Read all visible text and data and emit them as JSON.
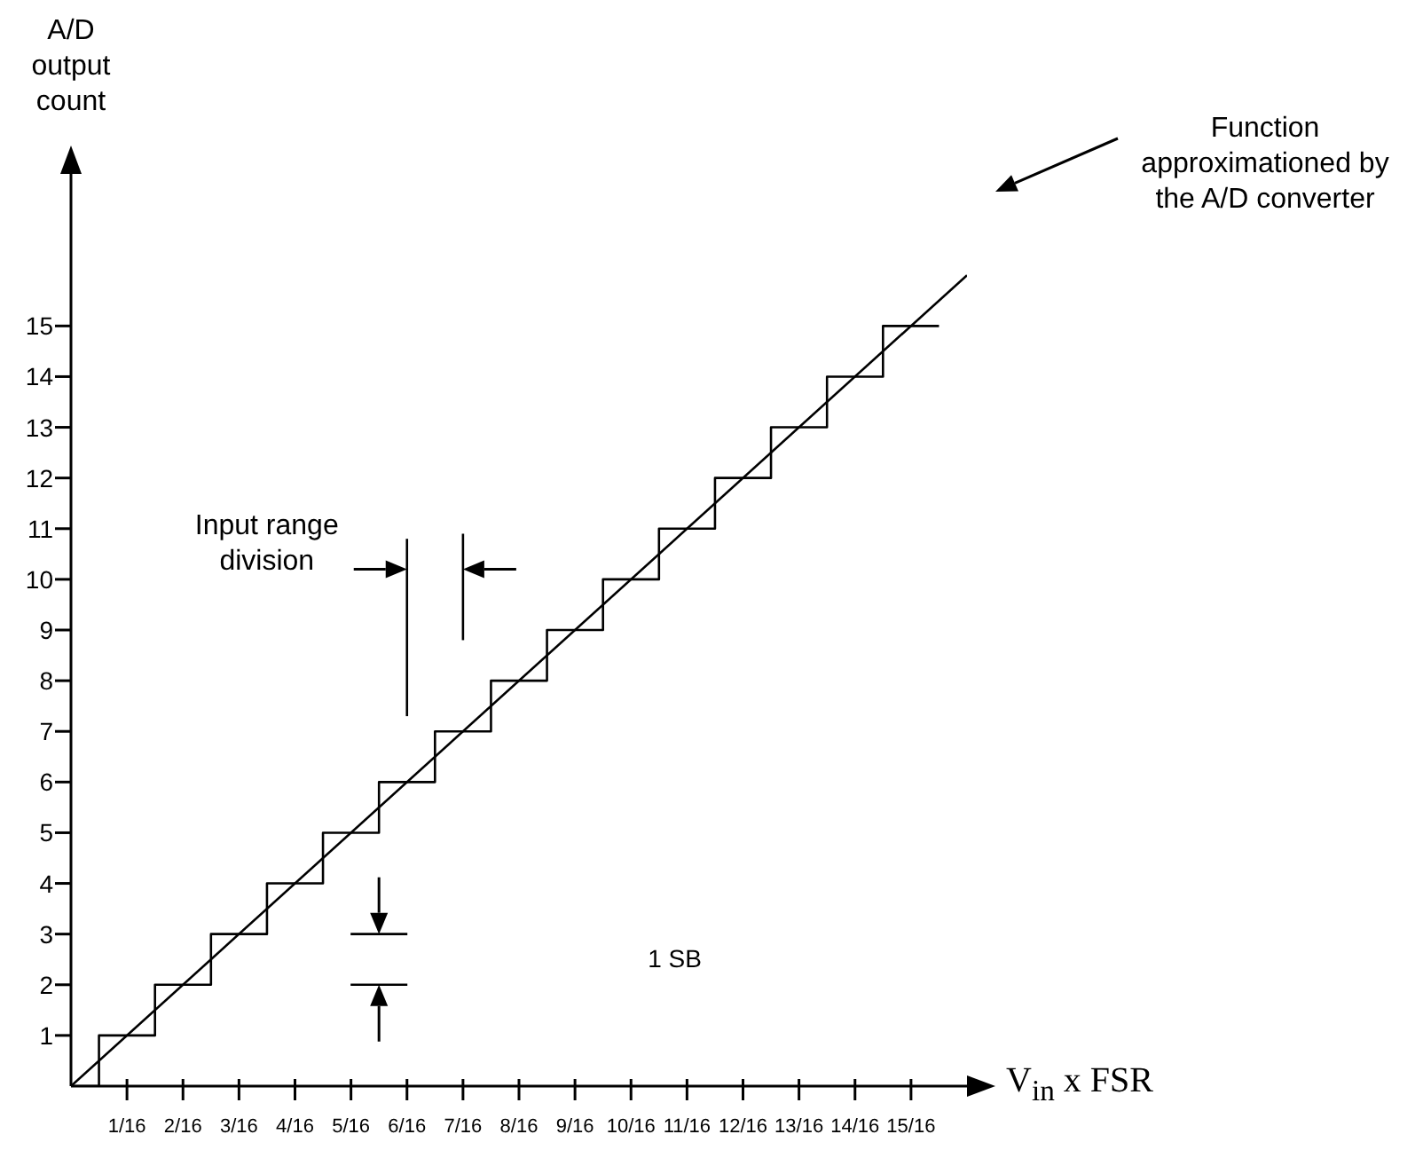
{
  "chart_data": {
    "type": "step",
    "xlabel": "V$_{in}$ x FSR",
    "ylabel": "A/D output count",
    "xlim": [
      0,
      1
    ],
    "ylim": [
      0,
      18
    ],
    "xticks": [
      {
        "value": 0.0625,
        "label": "1/16"
      },
      {
        "value": 0.125,
        "label": "2/16"
      },
      {
        "value": 0.1875,
        "label": "3/16"
      },
      {
        "value": 0.25,
        "label": "4/16"
      },
      {
        "value": 0.3125,
        "label": "5/16"
      },
      {
        "value": 0.375,
        "label": "6/16"
      },
      {
        "value": 0.4375,
        "label": "7/16"
      },
      {
        "value": 0.5,
        "label": "8/16"
      },
      {
        "value": 0.5625,
        "label": "9/16"
      },
      {
        "value": 0.625,
        "label": "10/16"
      },
      {
        "value": 0.6875,
        "label": "11/16"
      },
      {
        "value": 0.75,
        "label": "12/16"
      },
      {
        "value": 0.8125,
        "label": "13/16"
      },
      {
        "value": 0.875,
        "label": "14/16"
      },
      {
        "value": 0.9375,
        "label": "15/16"
      }
    ],
    "yticks": [
      1,
      2,
      3,
      4,
      5,
      6,
      7,
      8,
      9,
      10,
      11,
      12,
      13,
      14,
      15
    ],
    "series": [
      {
        "type": "step",
        "color": "#000000",
        "x": [
          0,
          0.03125,
          0.09375,
          0.15625,
          0.21875,
          0.28125,
          0.34375,
          0.40625,
          0.46875,
          0.53125,
          0.59375,
          0.65625,
          0.71875,
          0.78125,
          0.84375,
          0.90625,
          0.96875
        ],
        "values": [
          0,
          1,
          2,
          3,
          4,
          5,
          6,
          7,
          8,
          9,
          10,
          11,
          12,
          13,
          14,
          15,
          15
        ]
      },
      {
        "type": "line",
        "color": "#000000",
        "x": [
          0,
          1
        ],
        "values": [
          0,
          16
        ]
      }
    ],
    "marker": "none",
    "line_style": "solid",
    "annotations": [
      "Function approximationed by the A/D converter",
      "Input range division",
      "1 SB"
    ]
  }
}
